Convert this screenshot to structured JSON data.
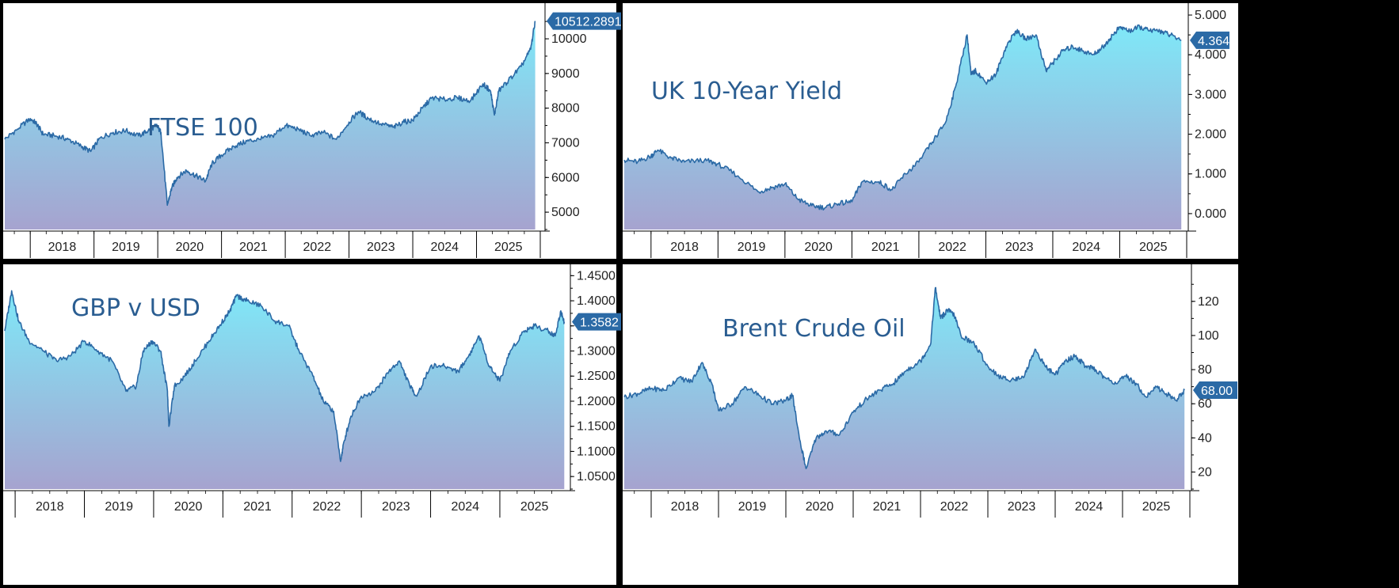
{
  "colors": {
    "line": "#2b6aa6",
    "fill_top": "#7fe8f8",
    "fill_bottom": "#a6a3cf",
    "title": "#2a5d91",
    "value_tag": "#2b6aa6",
    "value_tag_text": "#ffffff"
  },
  "chart_data": [
    {
      "type": "area",
      "title": "FTSE 100",
      "last_value_label": "10512.2891",
      "ylim": [
        4500,
        10800
      ],
      "yticks": [
        "5000",
        "6000",
        "7000",
        "8000",
        "9000",
        "10000"
      ],
      "ytick_values": [
        5000,
        6000,
        7000,
        8000,
        9000,
        10000
      ],
      "xlim": [
        2017.6,
        2026.0
      ],
      "years": [
        "2018",
        "2019",
        "2020",
        "2021",
        "2022",
        "2023",
        "2024",
        "2025"
      ],
      "x": [
        2017.6,
        2017.8,
        2018.0,
        2018.1,
        2018.2,
        2018.4,
        2018.6,
        2018.8,
        2018.95,
        2019.1,
        2019.3,
        2019.5,
        2019.7,
        2019.85,
        2019.98,
        2020.05,
        2020.15,
        2020.22,
        2020.3,
        2020.45,
        2020.6,
        2020.75,
        2020.85,
        2021.0,
        2021.2,
        2021.4,
        2021.6,
        2021.8,
        2022.0,
        2022.2,
        2022.4,
        2022.6,
        2022.8,
        2023.0,
        2023.15,
        2023.3,
        2023.5,
        2023.7,
        2023.85,
        2024.0,
        2024.15,
        2024.3,
        2024.5,
        2024.7,
        2024.9,
        2025.1,
        2025.22,
        2025.28,
        2025.35,
        2025.5,
        2025.7,
        2025.85,
        2025.92
      ],
      "values": [
        7100,
        7400,
        7700,
        7550,
        7250,
        7200,
        7100,
        6900,
        6750,
        7150,
        7300,
        7350,
        7200,
        7350,
        7500,
        7300,
        5200,
        5700,
        6000,
        6200,
        6050,
        5900,
        6400,
        6650,
        6900,
        7050,
        7100,
        7200,
        7500,
        7400,
        7200,
        7300,
        7100,
        7600,
        7900,
        7700,
        7550,
        7450,
        7600,
        7650,
        8000,
        8300,
        8250,
        8300,
        8200,
        8700,
        8500,
        7800,
        8500,
        8800,
        9200,
        9700,
        10512
      ]
    },
    {
      "type": "area",
      "title": "UK 10-Year Yield",
      "last_value_label": "4.364",
      "ylim": [
        -0.4,
        5.1
      ],
      "yticks": [
        "0.000",
        "1.000",
        "2.000",
        "3.000",
        "4.000",
        "5.000"
      ],
      "ytick_values": [
        0,
        1,
        2,
        3,
        4,
        5
      ],
      "xlim": [
        2017.6,
        2026.0
      ],
      "years": [
        "2018",
        "2019",
        "2020",
        "2021",
        "2022",
        "2023",
        "2024",
        "2025"
      ],
      "x": [
        2017.6,
        2017.8,
        2018.0,
        2018.1,
        2018.3,
        2018.5,
        2018.8,
        2019.0,
        2019.3,
        2019.6,
        2019.8,
        2020.0,
        2020.2,
        2020.4,
        2020.6,
        2020.8,
        2021.0,
        2021.15,
        2021.4,
        2021.6,
        2021.8,
        2022.0,
        2022.2,
        2022.4,
        2022.55,
        2022.72,
        2022.78,
        2022.85,
        2023.0,
        2023.15,
        2023.3,
        2023.45,
        2023.6,
        2023.75,
        2023.9,
        2024.0,
        2024.15,
        2024.3,
        2024.45,
        2024.6,
        2024.75,
        2024.9,
        2025.0,
        2025.15,
        2025.3,
        2025.45,
        2025.6,
        2025.75,
        2025.92
      ],
      "values": [
        1.35,
        1.3,
        1.45,
        1.6,
        1.4,
        1.3,
        1.35,
        1.25,
        0.95,
        0.55,
        0.65,
        0.75,
        0.35,
        0.2,
        0.15,
        0.25,
        0.3,
        0.8,
        0.8,
        0.6,
        1.0,
        1.3,
        1.8,
        2.3,
        3.2,
        4.5,
        3.5,
        3.6,
        3.3,
        3.5,
        4.2,
        4.6,
        4.4,
        4.5,
        3.6,
        3.8,
        4.1,
        4.2,
        4.1,
        4.0,
        4.2,
        4.5,
        4.7,
        4.6,
        4.7,
        4.6,
        4.6,
        4.5,
        4.364
      ]
    },
    {
      "type": "area",
      "title": "GBP v USD",
      "last_value_label": "1.3582",
      "ylim": [
        1.025,
        1.46
      ],
      "yticks": [
        "1.0500",
        "1.1000",
        "1.1500",
        "1.2000",
        "1.2500",
        "1.3000",
        "1.3500",
        "1.4000",
        "1.4500"
      ],
      "ytick_values": [
        1.05,
        1.1,
        1.15,
        1.2,
        1.25,
        1.3,
        1.35,
        1.4,
        1.45
      ],
      "xlim": [
        2017.85,
        2025.95
      ],
      "years": [
        "2018",
        "2019",
        "2020",
        "2021",
        "2022",
        "2023",
        "2024",
        "2025"
      ],
      "x": [
        2017.85,
        2017.95,
        2018.05,
        2018.2,
        2018.4,
        2018.6,
        2018.8,
        2019.0,
        2019.2,
        2019.4,
        2019.6,
        2019.75,
        2019.85,
        2019.98,
        2020.1,
        2020.2,
        2020.22,
        2020.3,
        2020.45,
        2020.6,
        2020.8,
        2020.95,
        2021.1,
        2021.2,
        2021.35,
        2021.55,
        2021.75,
        2021.95,
        2022.1,
        2022.3,
        2022.45,
        2022.6,
        2022.7,
        2022.75,
        2022.85,
        2023.0,
        2023.2,
        2023.4,
        2023.55,
        2023.7,
        2023.8,
        2024.0,
        2024.2,
        2024.4,
        2024.55,
        2024.7,
        2024.85,
        2025.0,
        2025.15,
        2025.35,
        2025.5,
        2025.7,
        2025.8,
        2025.88,
        2025.93
      ],
      "values": [
        1.34,
        1.42,
        1.36,
        1.32,
        1.3,
        1.28,
        1.29,
        1.32,
        1.3,
        1.28,
        1.22,
        1.23,
        1.3,
        1.32,
        1.3,
        1.22,
        1.15,
        1.23,
        1.25,
        1.28,
        1.32,
        1.35,
        1.38,
        1.41,
        1.4,
        1.39,
        1.36,
        1.35,
        1.3,
        1.25,
        1.2,
        1.18,
        1.08,
        1.12,
        1.17,
        1.21,
        1.22,
        1.26,
        1.28,
        1.23,
        1.21,
        1.27,
        1.27,
        1.26,
        1.29,
        1.33,
        1.27,
        1.24,
        1.3,
        1.34,
        1.35,
        1.34,
        1.33,
        1.38,
        1.3582
      ]
    },
    {
      "type": "area",
      "title": "Brent Crude Oil",
      "last_value_label": "68.00",
      "ylim": [
        10,
        138
      ],
      "yticks": [
        "20",
        "40",
        "60",
        "80",
        "100",
        "120"
      ],
      "ytick_values": [
        20,
        40,
        60,
        80,
        100,
        120
      ],
      "xlim": [
        2017.6,
        2026.0
      ],
      "years": [
        "2018",
        "2019",
        "2020",
        "2021",
        "2022",
        "2023",
        "2024",
        "2025"
      ],
      "x": [
        2017.6,
        2017.8,
        2018.0,
        2018.2,
        2018.4,
        2018.6,
        2018.75,
        2018.9,
        2019.0,
        2019.2,
        2019.4,
        2019.6,
        2019.8,
        2020.0,
        2020.1,
        2020.2,
        2020.3,
        2020.45,
        2020.6,
        2020.8,
        2021.0,
        2021.2,
        2021.4,
        2021.6,
        2021.8,
        2022.0,
        2022.15,
        2022.22,
        2022.3,
        2022.4,
        2022.5,
        2022.6,
        2022.8,
        2023.0,
        2023.2,
        2023.4,
        2023.55,
        2023.7,
        2023.85,
        2024.0,
        2024.15,
        2024.3,
        2024.45,
        2024.6,
        2024.75,
        2024.9,
        2025.05,
        2025.2,
        2025.35,
        2025.5,
        2025.65,
        2025.8,
        2025.92
      ],
      "values": [
        64,
        66,
        69,
        68,
        75,
        73,
        84,
        72,
        56,
        60,
        70,
        65,
        60,
        62,
        65,
        40,
        22,
        40,
        44,
        42,
        55,
        63,
        68,
        72,
        80,
        85,
        95,
        128,
        110,
        115,
        112,
        100,
        95,
        82,
        75,
        74,
        77,
        92,
        82,
        77,
        85,
        88,
        82,
        80,
        75,
        72,
        76,
        72,
        64,
        70,
        66,
        62,
        68
      ]
    }
  ]
}
